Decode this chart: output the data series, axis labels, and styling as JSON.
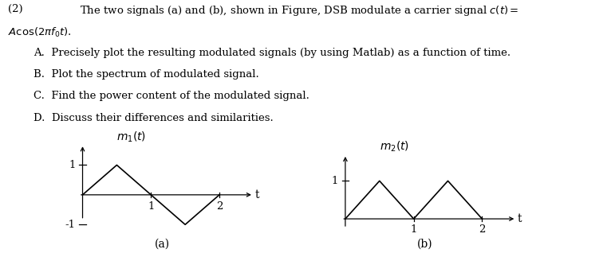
{
  "background_color": "#ffffff",
  "text_color": "#000000",
  "signal_a": {
    "x": [
      0,
      0.5,
      1.0,
      1.5,
      2.0
    ],
    "y": [
      0,
      1,
      0,
      -1,
      0
    ],
    "label": "$m_1(t)$",
    "xlabel": "t",
    "caption": "(a)",
    "yticks": [
      1,
      -1
    ],
    "xticks": [
      1,
      2
    ],
    "xlim": [
      -0.18,
      2.5
    ],
    "ylim": [
      -1.7,
      1.7
    ]
  },
  "signal_b": {
    "x": [
      0,
      0.5,
      1.0,
      1.5,
      2.0
    ],
    "y": [
      0,
      1,
      0,
      1,
      0
    ],
    "label": "$m_2(t)$",
    "xlabel": "t",
    "caption": "(b)",
    "yticks": [
      1
    ],
    "xticks": [
      1,
      2
    ],
    "xlim": [
      -0.18,
      2.5
    ],
    "ylim": [
      -0.5,
      1.7
    ]
  },
  "font_size_text": 9.5,
  "font_size_axis": 9.5,
  "font_size_label": 10,
  "font_size_caption": 10,
  "line_color": "#000000",
  "line_width": 1.2
}
